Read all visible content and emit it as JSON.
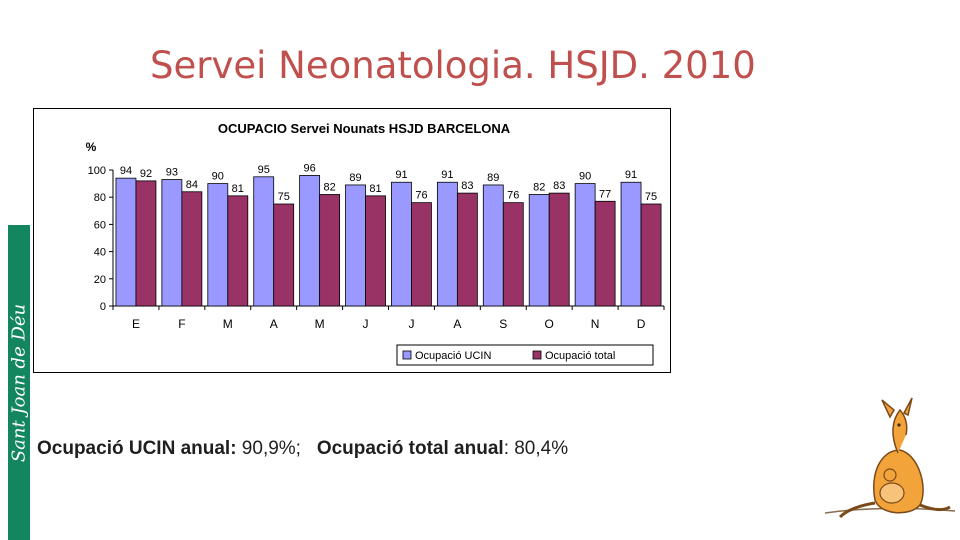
{
  "slide": {
    "title": "Servei Neonatologia. HSJD. 2010",
    "logo_text": "Sant Joan de Déu"
  },
  "summary": {
    "ucin_label": "Ocupació UCIN anual:",
    "ucin_value": " 90,9%;",
    "total_label": "Ocupació total anual",
    "total_value": ": 80,4%"
  },
  "chart_data": {
    "type": "bar",
    "title": "OCUPACIO Servei Nounats HSJD BARCELONA",
    "ylabel": "%",
    "xlabel": "",
    "ylim": [
      0,
      100
    ],
    "yticks": [
      0,
      20,
      40,
      60,
      80,
      100
    ],
    "categories": [
      "E",
      "F",
      "M",
      "A",
      "M",
      "J",
      "J",
      "A",
      "S",
      "O",
      "N",
      "D"
    ],
    "series": [
      {
        "name": "Ocupació UCIN",
        "color": "#9999ff",
        "values": [
          94,
          93,
          90,
          95,
          96,
          89,
          91,
          91,
          89,
          82,
          90,
          91
        ]
      },
      {
        "name": "Ocupació total",
        "color": "#993366",
        "values": [
          92,
          84,
          81,
          75,
          82,
          81,
          76,
          83,
          76,
          83,
          77,
          75
        ]
      }
    ],
    "legend_position": "bottom-right",
    "grid": false,
    "plot_background": "#ffffff"
  }
}
